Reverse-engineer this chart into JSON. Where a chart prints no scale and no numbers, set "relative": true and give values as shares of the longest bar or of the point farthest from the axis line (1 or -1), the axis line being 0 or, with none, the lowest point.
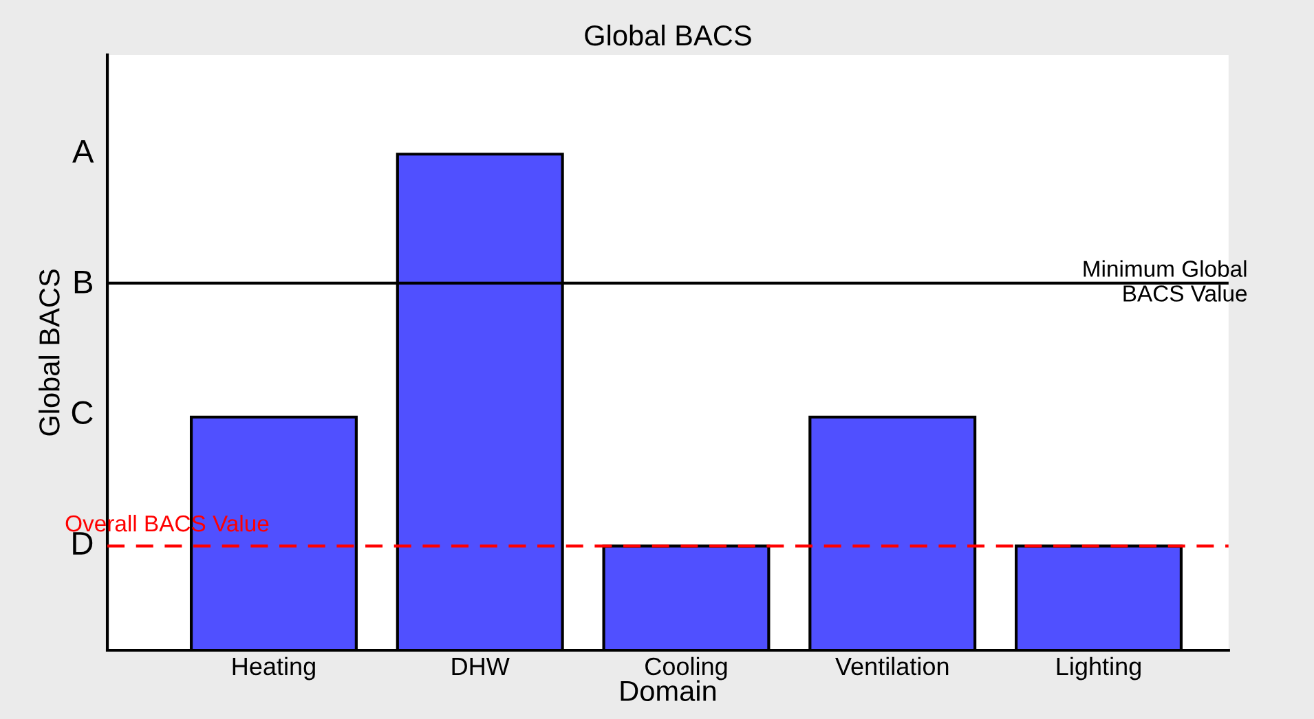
{
  "chart_data": {
    "type": "bar",
    "title": "Global BACS",
    "xlabel": "Domain",
    "ylabel": "Global BACS",
    "categories": [
      "Heating",
      "DHW",
      "Cooling",
      "Ventilation",
      "Lighting"
    ],
    "values": [
      0.47,
      1,
      0.21,
      0.47,
      0.21
    ],
    "color": "#5050ff",
    "relative": true,
    "annotations": [
      "D",
      "C",
      "B",
      "A"
    ],
    "ref_lines": [
      {
        "axis": "y",
        "value": 0.74,
        "label": "Minimum Global\nBACS Value",
        "color": "#000000",
        "line_style": "solid"
      },
      {
        "axis": "y",
        "value": 0.21,
        "label": "Overall BACS Value",
        "color": "#ff0000",
        "line_style": "dashed"
      }
    ]
  }
}
